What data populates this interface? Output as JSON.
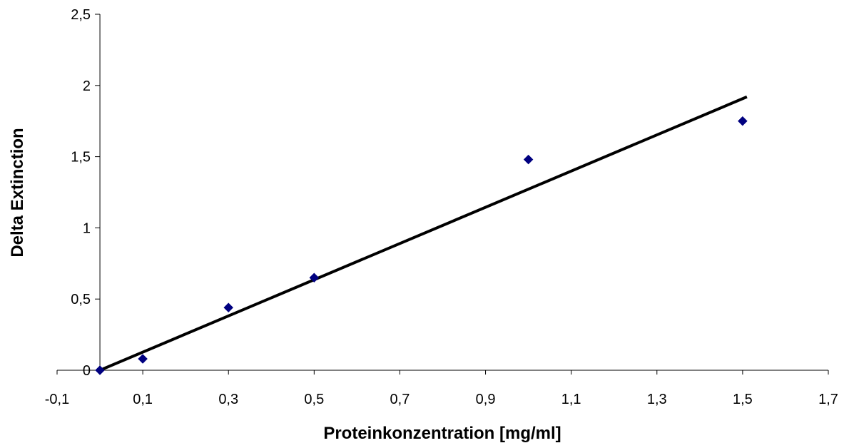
{
  "chart_data": {
    "type": "scatter",
    "title": "",
    "xlabel": "Proteinkonzentration [mg/ml]",
    "ylabel": "Delta Extinction",
    "xlim": [
      -0.1,
      1.7
    ],
    "ylim": [
      0,
      2.5
    ],
    "x_ticks": [
      "-0,1",
      "0,1",
      "0,3",
      "0,5",
      "0,7",
      "0,9",
      "1,1",
      "1,3",
      "1,5",
      "1,7"
    ],
    "y_ticks": [
      "0",
      "0,5",
      "1",
      "1,5",
      "2",
      "2,5"
    ],
    "grid": false,
    "legend": "none",
    "series": [
      {
        "x": [
          0,
          0.1,
          0.3,
          0.5,
          1.0,
          1.5
        ],
        "y": [
          0,
          0.08,
          0.44,
          0.65,
          1.48,
          1.75
        ],
        "marker": "diamond",
        "color": "#000080"
      }
    ],
    "trendline": {
      "type": "linear",
      "x": [
        0,
        1.51
      ],
      "y": [
        0,
        1.92
      ],
      "color": "#000000"
    }
  }
}
